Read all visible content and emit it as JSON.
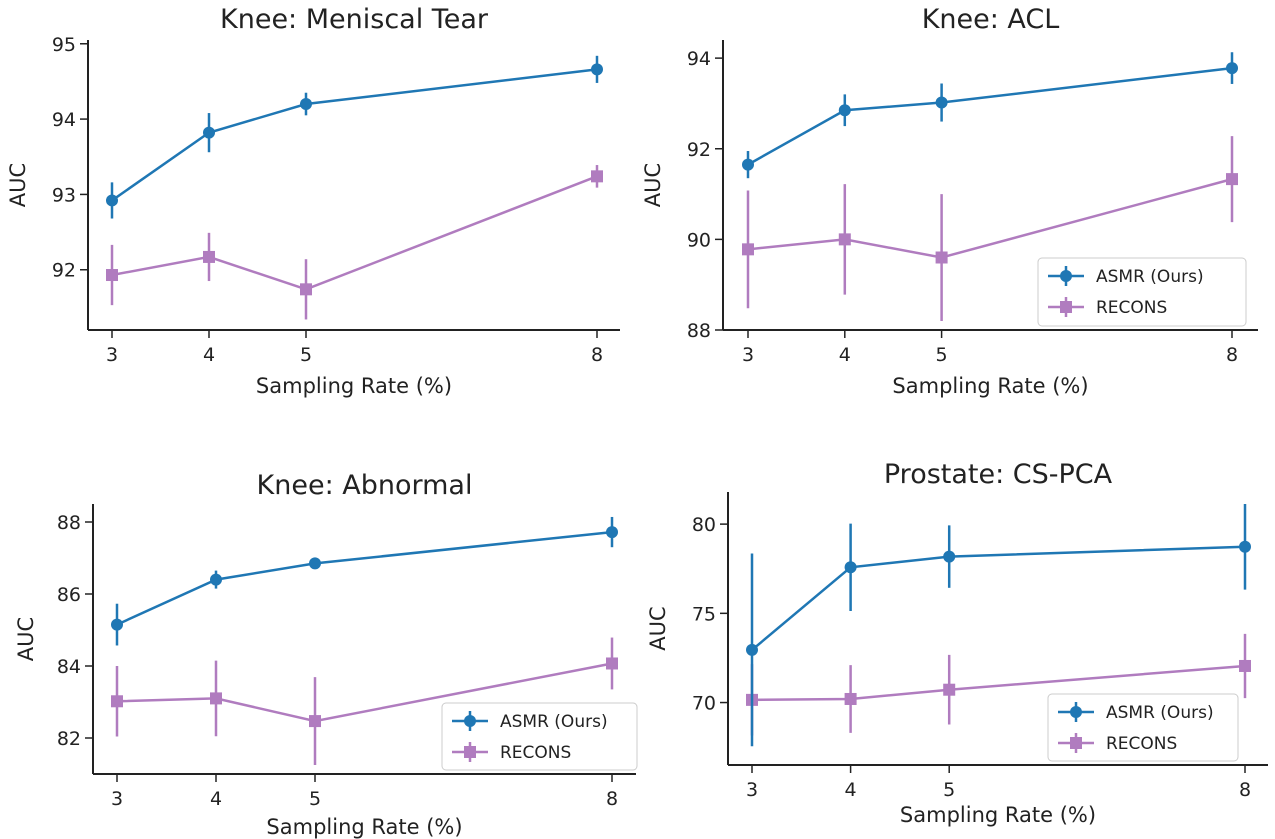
{
  "figure": {
    "colors": {
      "asmr": "#1f77b4",
      "recons": "#b07cbf"
    },
    "chart_data": [
      {
        "type": "line",
        "title": "Knee: Meniscal Tear",
        "xlabel": "Sampling Rate (%)",
        "ylabel": "AUC",
        "x": [
          3,
          4,
          5,
          8
        ],
        "x_tick_labels": [
          "3",
          "4",
          "5",
          "8"
        ],
        "ylim": [
          91.2,
          95.05
        ],
        "yticks": [
          92,
          93,
          94,
          95
        ],
        "grid": false,
        "legend": null,
        "series": [
          {
            "name": "ASMR (Ours)",
            "marker": "circle",
            "values": [
              92.92,
              93.82,
              94.2,
              94.66
            ],
            "err": [
              0.24,
              0.26,
              0.15,
              0.18
            ]
          },
          {
            "name": "RECONS",
            "marker": "square",
            "values": [
              91.93,
              92.17,
              91.74,
              93.24
            ],
            "err": [
              0.4,
              0.32,
              0.4,
              0.15
            ]
          }
        ]
      },
      {
        "type": "line",
        "title": "Knee: ACL",
        "xlabel": "Sampling Rate (%)",
        "ylabel": "AUC",
        "x": [
          3,
          4,
          5,
          8
        ],
        "x_tick_labels": [
          "3",
          "4",
          "5",
          "8"
        ],
        "ylim": [
          88,
          94.4
        ],
        "yticks": [
          88,
          90,
          92,
          94
        ],
        "grid": false,
        "legend": "lower-right",
        "series": [
          {
            "name": "ASMR (Ours)",
            "marker": "circle",
            "values": [
              91.65,
              92.85,
              93.02,
              93.78
            ],
            "err": [
              0.3,
              0.35,
              0.42,
              0.35
            ]
          },
          {
            "name": "RECONS",
            "marker": "square",
            "values": [
              89.78,
              90,
              89.6,
              91.33
            ],
            "err": [
              1.3,
              1.22,
              1.4,
              0.95
            ]
          }
        ]
      },
      {
        "type": "line",
        "title": "Knee: Abnormal",
        "xlabel": "Sampling Rate (%)",
        "ylabel": "AUC",
        "x": [
          3,
          4,
          5,
          8
        ],
        "x_tick_labels": [
          "3",
          "4",
          "5",
          "8"
        ],
        "ylim": [
          81.0,
          88.5
        ],
        "yticks": [
          82,
          84,
          86,
          88
        ],
        "grid": false,
        "legend": "lower-right",
        "series": [
          {
            "name": "ASMR (Ours)",
            "marker": "circle",
            "values": [
              85.15,
              86.4,
              86.85,
              87.72
            ],
            "err": [
              0.58,
              0.25,
              0.15,
              0.42
            ]
          },
          {
            "name": "RECONS",
            "marker": "square",
            "values": [
              83.02,
              83.1,
              82.47,
              84.07
            ],
            "err": [
              0.98,
              1.05,
              1.22,
              0.72
            ]
          }
        ]
      },
      {
        "type": "line",
        "title": "Prostate: CS-PCA",
        "xlabel": "Sampling Rate (%)",
        "ylabel": "AUC",
        "x": [
          3,
          4,
          5,
          8
        ],
        "x_tick_labels": [
          "3",
          "4",
          "5",
          "8"
        ],
        "ylim": [
          66.5,
          81.8
        ],
        "yticks": [
          70,
          75,
          80
        ],
        "grid": false,
        "legend": "lower-right",
        "series": [
          {
            "name": "ASMR (Ours)",
            "marker": "circle",
            "values": [
              72.95,
              77.58,
              78.18,
              78.73
            ],
            "err": [
              5.4,
              2.45,
              1.75,
              2.4
            ]
          },
          {
            "name": "RECONS",
            "marker": "square",
            "values": [
              70.15,
              70.2,
              70.72,
              72.05
            ],
            "err": [
              2.0,
              1.9,
              1.95,
              1.8
            ]
          }
        ]
      }
    ]
  }
}
